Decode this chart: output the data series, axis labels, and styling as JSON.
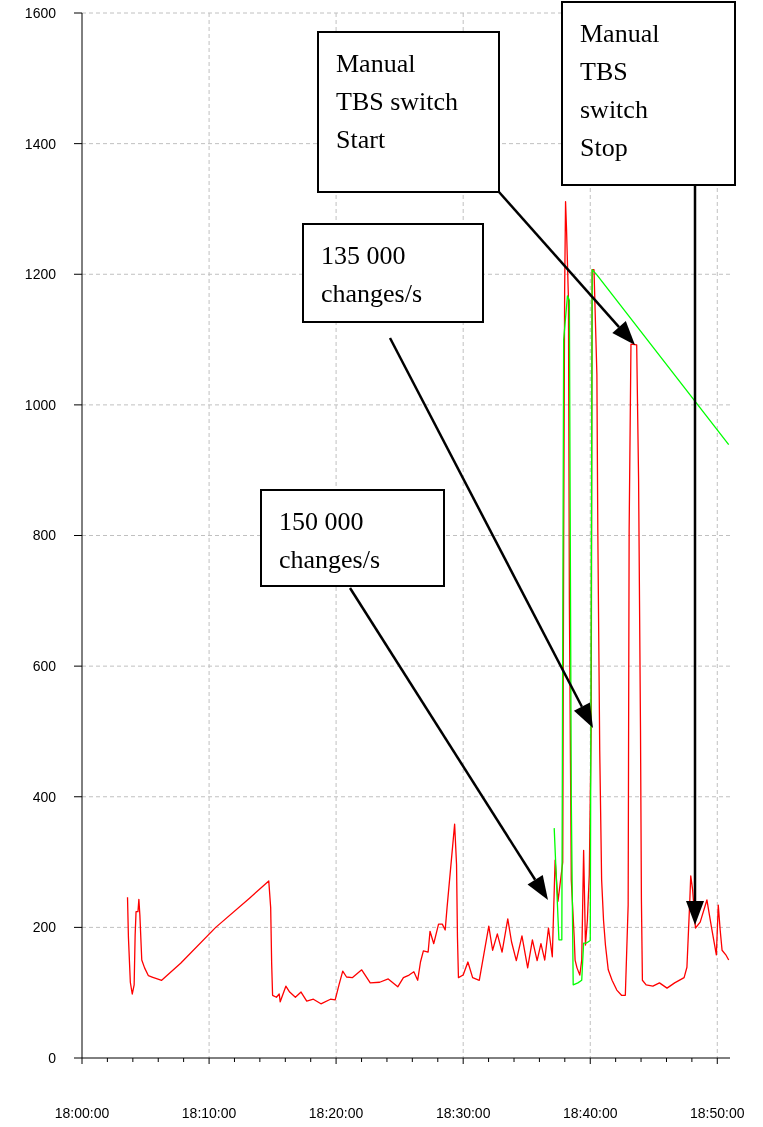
{
  "chart_data": {
    "type": "line",
    "xlim": [
      18,
      18.85
    ],
    "ylim": [
      0,
      1600
    ],
    "yticks": [
      0,
      200,
      400,
      600,
      800,
      1000,
      1200,
      1400,
      1600
    ],
    "xticks": [
      {
        "value": 18,
        "label": "18:00:00"
      },
      {
        "value": 18.0333,
        "label": null
      },
      {
        "value": 18.0667,
        "label": null
      },
      {
        "value": 18.1,
        "label": null
      },
      {
        "value": 18.1333,
        "label": null
      },
      {
        "value": 18.1667,
        "label": "18:10:00"
      },
      {
        "value": 18.2,
        "label": null
      },
      {
        "value": 18.2333,
        "label": null
      },
      {
        "value": 18.2667,
        "label": null
      },
      {
        "value": 18.3,
        "label": null
      },
      {
        "value": 18.3333,
        "label": "18:20:00"
      },
      {
        "value": 18.3667,
        "label": null
      },
      {
        "value": 18.4,
        "label": null
      },
      {
        "value": 18.4333,
        "label": null
      },
      {
        "value": 18.4667,
        "label": null
      },
      {
        "value": 18.5,
        "label": "18:30:00"
      },
      {
        "value": 18.5333,
        "label": null
      },
      {
        "value": 18.5667,
        "label": null
      },
      {
        "value": 18.6,
        "label": null
      },
      {
        "value": 18.6333,
        "label": null
      },
      {
        "value": 18.6667,
        "label": "18:40:00"
      },
      {
        "value": 18.7,
        "label": null
      },
      {
        "value": 18.7333,
        "label": null
      },
      {
        "value": 18.7667,
        "label": null
      },
      {
        "value": 18.8,
        "label": null
      },
      {
        "value": 18.8333,
        "label": "18:50:00"
      }
    ],
    "grid": true,
    "series": [
      {
        "color": "#ff0000",
        "x": [
          18.0597,
          18.0609,
          18.0634,
          18.0659,
          18.0684,
          18.0697,
          18.0709,
          18.0734,
          18.0746,
          18.0759,
          18.0784,
          18.0821,
          18.0871,
          18.092,
          18.1045,
          18.1294,
          18.1754,
          18.2201,
          18.245,
          18.2475,
          18.2488,
          18.25,
          18.255,
          18.2587,
          18.26,
          18.2674,
          18.2724,
          18.2799,
          18.2873,
          18.2948,
          18.3035,
          18.3134,
          18.3259,
          18.3321,
          18.3371,
          18.342,
          18.347,
          18.3545,
          18.3669,
          18.3781,
          18.3905,
          18.4017,
          18.4142,
          18.4216,
          18.4291,
          18.4353,
          18.4403,
          18.444,
          18.4478,
          18.454,
          18.4565,
          18.4614,
          18.4677,
          18.4726,
          18.4764,
          18.4789,
          18.4888,
          18.4913,
          18.4925,
          18.4938,
          18.5,
          18.5062,
          18.5124,
          18.5211,
          18.5336,
          18.5386,
          18.5448,
          18.551,
          18.5585,
          18.5634,
          18.5697,
          18.5771,
          18.5846,
          18.5908,
          18.597,
          18.602,
          18.607,
          18.6119,
          18.6169,
          18.6206,
          18.6244,
          18.6306,
          18.6318,
          18.6331,
          18.6343,
          18.6356,
          18.6381,
          18.6393,
          18.6418,
          18.6455,
          18.6468,
          18.6493,
          18.653,
          18.6555,
          18.658,
          18.6604,
          18.6629,
          18.6654,
          18.6679,
          18.6692,
          18.6716,
          18.6754,
          18.6766,
          18.6791,
          18.6816,
          18.6841,
          18.6866,
          18.6903,
          18.6953,
          18.7015,
          18.7077,
          18.7127,
          18.7164,
          18.7177,
          18.7201,
          18.7276,
          18.7301,
          18.7326,
          18.7338,
          18.7351,
          18.74,
          18.7488,
          18.7575,
          18.7674,
          18.7774,
          18.7898,
          18.7935,
          18.7973,
          18.7985,
          18.801,
          18.8047,
          18.8109,
          18.8197,
          18.8259,
          18.8321,
          18.8346,
          18.8371,
          18.8396,
          18.8445,
          18.8483
        ],
        "values": [
          246,
          185,
          116,
          98,
          112,
          188,
          224,
          224,
          243,
          219,
          150,
          138,
          126,
          124,
          119,
          145,
          200,
          245,
          271,
          230,
          144,
          96,
          93,
          98,
          86,
          110,
          101,
          93,
          101,
          87,
          90,
          83,
          90,
          89,
          112,
          133,
          124,
          123,
          135,
          115,
          116,
          121,
          109,
          123,
          127,
          132,
          119,
          147,
          164,
          162,
          194,
          175,
          205,
          205,
          196,
          231,
          358,
          296,
          185,
          123,
          127,
          147,
          123,
          119,
          202,
          165,
          190,
          162,
          213,
          178,
          149,
          187,
          138,
          181,
          149,
          175,
          150,
          199,
          155,
          303,
          240,
          300,
          778,
          1176,
          1311,
          1268,
          1161,
          701,
          273,
          188,
          150,
          138,
          127,
          150,
          318,
          173,
          211,
          280,
          505,
          1207,
          1207,
          1046,
          808,
          472,
          273,
          211,
          173,
          135,
          119,
          104,
          96,
          96,
          234,
          808,
          1093,
          1092,
          885,
          502,
          242,
          119,
          112,
          110,
          115,
          107,
          115,
          123,
          139,
          242,
          279,
          257,
          199,
          208,
          242,
          199,
          158,
          234,
          196,
          165,
          158,
          150
        ]
      },
      {
        "color": "#00ff00",
        "x": [
          18.6194,
          18.6256,
          18.6294,
          18.6318,
          18.6368,
          18.6393,
          18.6418,
          18.6443,
          18.6505,
          18.6555,
          18.658,
          18.6617,
          18.6667,
          18.6692,
          18.6754,
          18.8483
        ],
        "values": [
          352,
          181,
          181,
          1100,
          1167,
          1160,
          400,
          112,
          115,
          119,
          176,
          176,
          180,
          1207,
          1199,
          939
        ]
      }
    ],
    "annotations": [
      "Manual TBS switch Start",
      "Manual TBS switch Stop",
      "135 000 changes/s",
      "150 000 changes/s"
    ]
  }
}
